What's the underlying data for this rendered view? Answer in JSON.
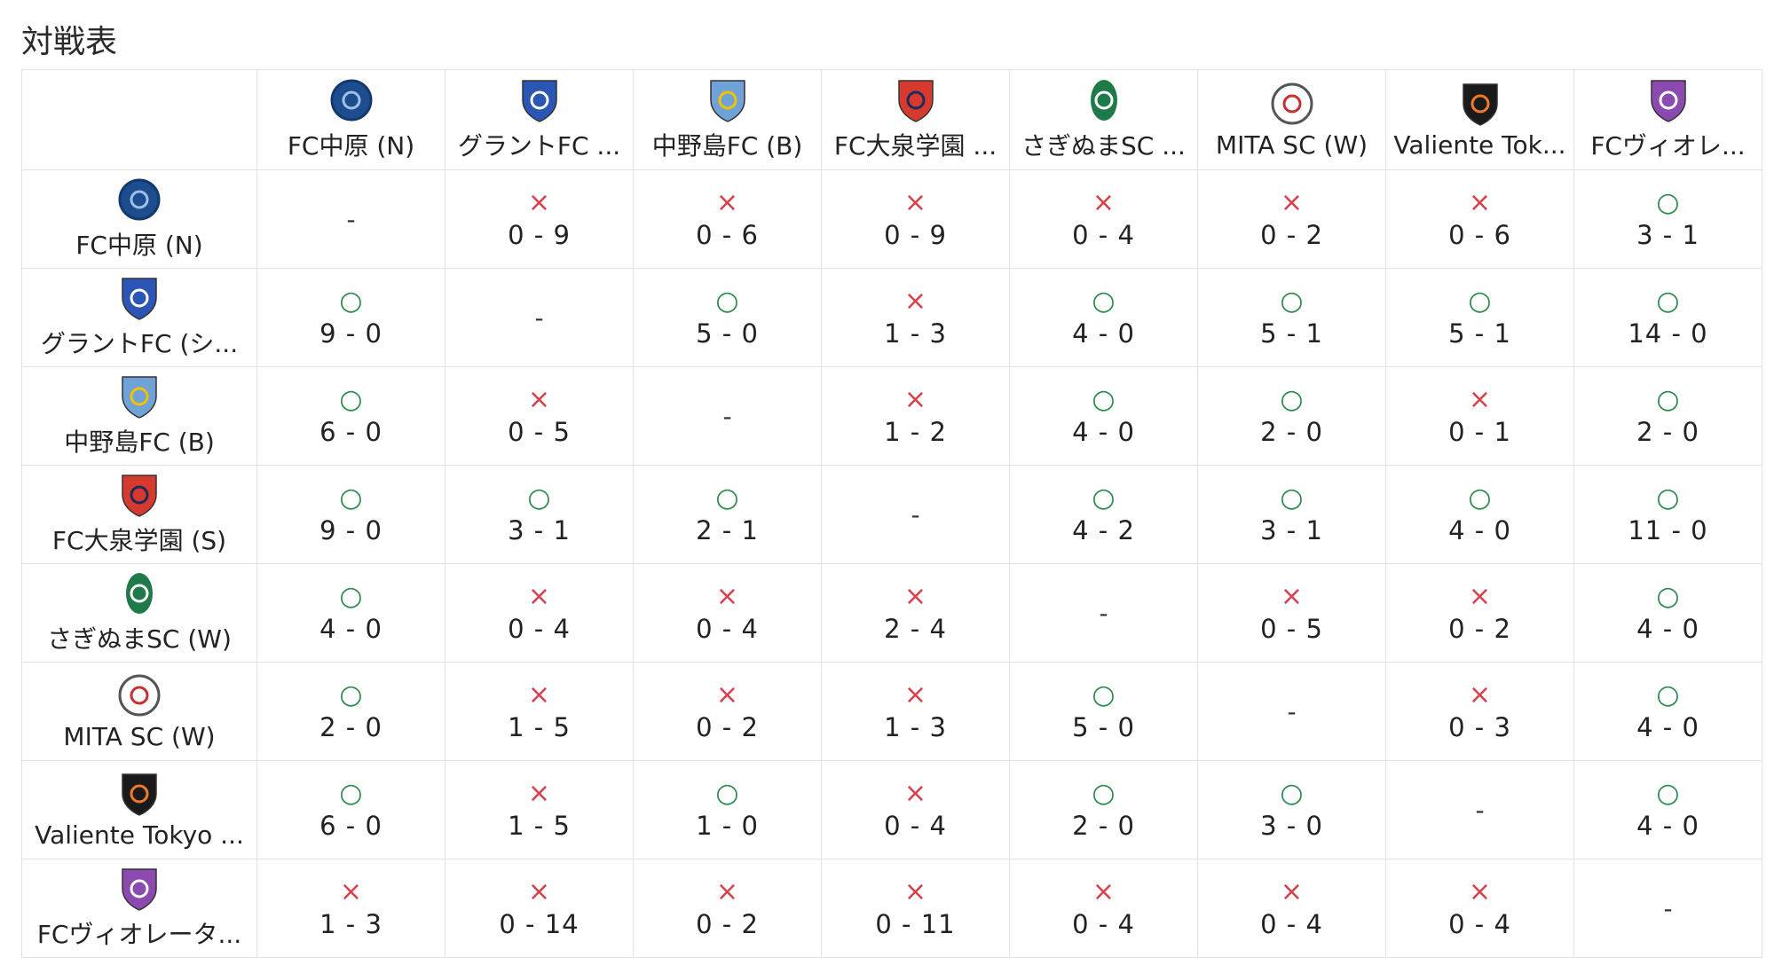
{
  "title": "対戦表",
  "teams": [
    {
      "name": "FC中原 (N)",
      "logo": "fc-nakahara-logo",
      "color": "#1d4d8f",
      "accent": "#9fc0e6"
    },
    {
      "name": "グラントFC (シ...",
      "header": "グラントFC ...",
      "logo": "grant-fc-logo",
      "color": "#2b56b5",
      "accent": "#ffffff"
    },
    {
      "name": "中野島FC (B)",
      "logo": "nakanoshima-fc-logo",
      "color": "#6fa3d8",
      "accent": "#f2c200"
    },
    {
      "name": "FC大泉学園 (S)",
      "header": "FC大泉学園 ...",
      "logo": "fc-oizumi-gakuen-logo",
      "color": "#d63a2f",
      "accent": "#1e2a5a"
    },
    {
      "name": "さぎぬまSC (W)",
      "header": "さぎぬまSC ...",
      "logo": "saginuma-sc-logo",
      "color": "#1f7a4a",
      "accent": "#ffffff"
    },
    {
      "name": "MITA SC (W)",
      "logo": "mita-sc-logo",
      "color": "#ffffff",
      "accent": "#c93030"
    },
    {
      "name": "Valiente Tokyo ...",
      "header": "Valiente Tok...",
      "logo": "valiente-tokyo-logo",
      "color": "#1a1a1a",
      "accent": "#f07a2a"
    },
    {
      "name": "FCヴィオレータ...",
      "header": "FCヴィオレ...",
      "logo": "fc-violeta-logo",
      "color": "#8a4ab0",
      "accent": "#ffffff"
    }
  ],
  "self_symbol": "-",
  "marks": {
    "win": "○",
    "loss": "×"
  },
  "results": [
    [
      null,
      {
        "r": "loss",
        "s": "0 - 9"
      },
      {
        "r": "loss",
        "s": "0 - 6"
      },
      {
        "r": "loss",
        "s": "0 - 9"
      },
      {
        "r": "loss",
        "s": "0 - 4"
      },
      {
        "r": "loss",
        "s": "0 - 2"
      },
      {
        "r": "loss",
        "s": "0 - 6"
      },
      {
        "r": "win",
        "s": "3 - 1"
      }
    ],
    [
      {
        "r": "win",
        "s": "9 - 0"
      },
      null,
      {
        "r": "win",
        "s": "5 - 0"
      },
      {
        "r": "loss",
        "s": "1 - 3"
      },
      {
        "r": "win",
        "s": "4 - 0"
      },
      {
        "r": "win",
        "s": "5 - 1"
      },
      {
        "r": "win",
        "s": "5 - 1"
      },
      {
        "r": "win",
        "s": "14 - 0"
      }
    ],
    [
      {
        "r": "win",
        "s": "6 - 0"
      },
      {
        "r": "loss",
        "s": "0 - 5"
      },
      null,
      {
        "r": "loss",
        "s": "1 - 2"
      },
      {
        "r": "win",
        "s": "4 - 0"
      },
      {
        "r": "win",
        "s": "2 - 0"
      },
      {
        "r": "loss",
        "s": "0 - 1"
      },
      {
        "r": "win",
        "s": "2 - 0"
      }
    ],
    [
      {
        "r": "win",
        "s": "9 - 0"
      },
      {
        "r": "win",
        "s": "3 - 1"
      },
      {
        "r": "win",
        "s": "2 - 1"
      },
      null,
      {
        "r": "win",
        "s": "4 - 2"
      },
      {
        "r": "win",
        "s": "3 - 1"
      },
      {
        "r": "win",
        "s": "4 - 0"
      },
      {
        "r": "win",
        "s": "11 - 0"
      }
    ],
    [
      {
        "r": "win",
        "s": "4 - 0"
      },
      {
        "r": "loss",
        "s": "0 - 4"
      },
      {
        "r": "loss",
        "s": "0 - 4"
      },
      {
        "r": "loss",
        "s": "2 - 4"
      },
      null,
      {
        "r": "loss",
        "s": "0 - 5"
      },
      {
        "r": "loss",
        "s": "0 - 2"
      },
      {
        "r": "win",
        "s": "4 - 0"
      }
    ],
    [
      {
        "r": "win",
        "s": "2 - 0"
      },
      {
        "r": "loss",
        "s": "1 - 5"
      },
      {
        "r": "loss",
        "s": "0 - 2"
      },
      {
        "r": "loss",
        "s": "1 - 3"
      },
      {
        "r": "win",
        "s": "5 - 0"
      },
      null,
      {
        "r": "loss",
        "s": "0 - 3"
      },
      {
        "r": "win",
        "s": "4 - 0"
      }
    ],
    [
      {
        "r": "win",
        "s": "6 - 0"
      },
      {
        "r": "loss",
        "s": "1 - 5"
      },
      {
        "r": "win",
        "s": "1 - 0"
      },
      {
        "r": "loss",
        "s": "0 - 4"
      },
      {
        "r": "win",
        "s": "2 - 0"
      },
      {
        "r": "win",
        "s": "3 - 0"
      },
      null,
      {
        "r": "win",
        "s": "4 - 0"
      }
    ],
    [
      {
        "r": "loss",
        "s": "1 - 3"
      },
      {
        "r": "loss",
        "s": "0 - 14"
      },
      {
        "r": "loss",
        "s": "0 - 2"
      },
      {
        "r": "loss",
        "s": "0 - 11"
      },
      {
        "r": "loss",
        "s": "0 - 4"
      },
      {
        "r": "loss",
        "s": "0 - 4"
      },
      {
        "r": "loss",
        "s": "0 - 4"
      },
      null
    ]
  ]
}
